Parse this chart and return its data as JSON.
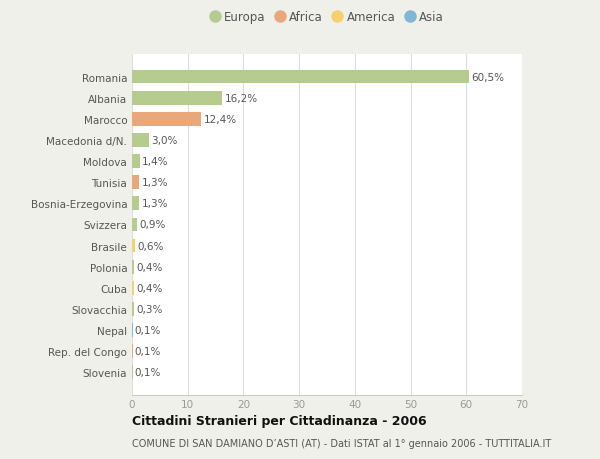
{
  "countries": [
    "Romania",
    "Albania",
    "Marocco",
    "Macedonia d/N.",
    "Moldova",
    "Tunisia",
    "Bosnia-Erzegovina",
    "Svizzera",
    "Brasile",
    "Polonia",
    "Cuba",
    "Slovacchia",
    "Nepal",
    "Rep. del Congo",
    "Slovenia"
  ],
  "values": [
    60.5,
    16.2,
    12.4,
    3.0,
    1.4,
    1.3,
    1.3,
    0.9,
    0.6,
    0.4,
    0.4,
    0.3,
    0.1,
    0.1,
    0.1
  ],
  "labels": [
    "60,5%",
    "16,2%",
    "12,4%",
    "3,0%",
    "1,4%",
    "1,3%",
    "1,3%",
    "0,9%",
    "0,6%",
    "0,4%",
    "0,4%",
    "0,3%",
    "0,1%",
    "0,1%",
    "0,1%"
  ],
  "colors": [
    "#b5cc8e",
    "#b5cc8e",
    "#e8a87c",
    "#b5cc8e",
    "#b5cc8e",
    "#e8a87c",
    "#b5cc8e",
    "#b5cc8e",
    "#f5d06e",
    "#b5cc8e",
    "#f5d06e",
    "#b5cc8e",
    "#7eb8d4",
    "#e8a87c",
    "#b5cc8e"
  ],
  "legend": [
    {
      "label": "Europa",
      "color": "#b5cc8e"
    },
    {
      "label": "Africa",
      "color": "#e8a87c"
    },
    {
      "label": "America",
      "color": "#f5d06e"
    },
    {
      "label": "Asia",
      "color": "#7eb8d4"
    }
  ],
  "xlim": [
    0,
    70
  ],
  "xticks": [
    0,
    10,
    20,
    30,
    40,
    50,
    60,
    70
  ],
  "title": "Cittadini Stranieri per Cittadinanza - 2006",
  "subtitle": "COMUNE DI SAN DAMIANO D’ASTI (AT) - Dati ISTAT al 1° gennaio 2006 - TUTTITALIA.IT",
  "bg_color": "#f0f0eb",
  "bar_bg_color": "#ffffff"
}
